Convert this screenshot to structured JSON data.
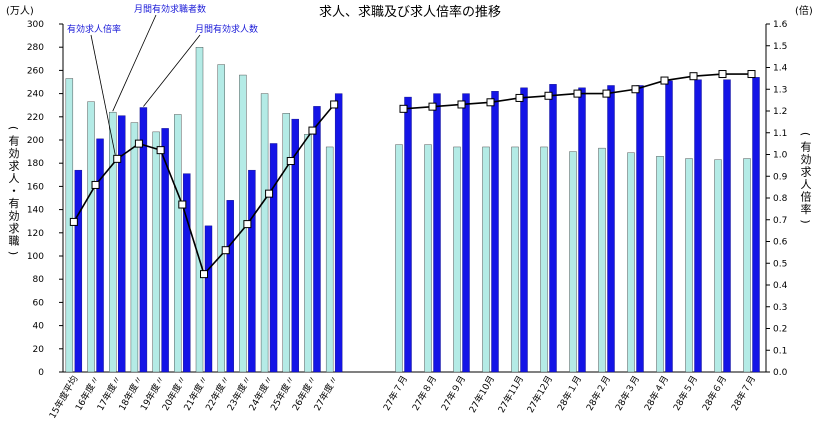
{
  "chart_data": {
    "type": "bar",
    "title": "求人、求職及び求人倍率の推移",
    "left_unit": "(万人)",
    "right_unit": "(倍)",
    "ylabel_left": "(有効求人・有効求職)",
    "ylabel_right": "(有効求人倍率)",
    "ylim_left": [
      0,
      300
    ],
    "ylim_right": [
      0,
      1.6
    ],
    "left_ticks": [
      "0",
      "20",
      "40",
      "60",
      "80",
      "100",
      "120",
      "140",
      "160",
      "180",
      "200",
      "220",
      "240",
      "260",
      "280",
      "300"
    ],
    "right_ticks": [
      "0.0",
      "0.1",
      "0.2",
      "0.3",
      "0.4",
      "0.5",
      "0.6",
      "0.7",
      "0.8",
      "0.9",
      "1.0",
      "1.1",
      "1.2",
      "1.3",
      "1.4",
      "1.5",
      "1.6"
    ],
    "categories": [
      "15年度平均",
      "16年度〃",
      "17年度〃",
      "18年度〃",
      "19年度〃",
      "20年度〃",
      "21年度〃",
      "22年度〃",
      "23年度〃",
      "24年度〃",
      "25年度〃",
      "26年度〃",
      "27年度〃",
      "27年７月",
      "27年８月",
      "27年９月",
      "27年10月",
      "27年11月",
      "27年12月",
      "28年１月",
      "28年２月",
      "28年３月",
      "28年４月",
      "28年５月",
      "28年６月",
      "28年７月"
    ],
    "series": [
      {
        "name": "月間有効求職者数",
        "color": "#b4ebe6",
        "values": [
          253,
          233,
          224,
          215,
          207,
          222,
          280,
          265,
          256,
          240,
          223,
          205,
          194,
          196,
          196,
          194,
          194,
          194,
          194,
          190,
          193,
          189,
          186,
          184,
          183,
          184
        ]
      },
      {
        "name": "月間有効求人数",
        "color": "#1414e6",
        "values": [
          174,
          201,
          221,
          228,
          210,
          171,
          126,
          148,
          174,
          197,
          218,
          229,
          240,
          237,
          240,
          240,
          242,
          245,
          248,
          245,
          247,
          247,
          251,
          252,
          252,
          254
        ]
      },
      {
        "name": "有効求人倍率",
        "axis": "right",
        "type": "line",
        "values": [
          0.69,
          0.86,
          0.98,
          1.05,
          1.02,
          0.77,
          0.45,
          0.56,
          0.68,
          0.82,
          0.97,
          1.11,
          1.23,
          1.21,
          1.22,
          1.23,
          1.24,
          1.26,
          1.27,
          1.28,
          1.28,
          1.3,
          1.34,
          1.36,
          1.37,
          1.37
        ]
      }
    ],
    "annotations": [
      {
        "text": "有効求人倍率",
        "series": 2
      },
      {
        "text": "月間有効求職者数",
        "series": 0
      },
      {
        "text": "月間有効求人数",
        "series": 1
      }
    ],
    "gap_after_index": 12,
    "grid": false
  }
}
